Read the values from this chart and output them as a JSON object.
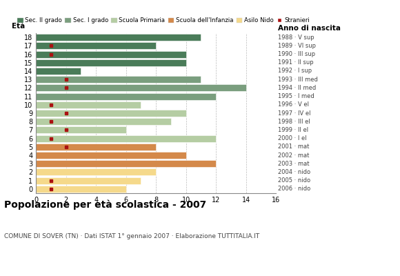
{
  "ages": [
    18,
    17,
    16,
    15,
    14,
    13,
    12,
    11,
    10,
    9,
    8,
    7,
    6,
    5,
    4,
    3,
    2,
    1,
    0
  ],
  "right_labels": [
    "1988 · V sup",
    "1989 · VI sup",
    "1990 · III sup",
    "1991 · II sup",
    "1992 · I sup",
    "1993 · III med",
    "1994 · II med",
    "1995 · I med",
    "1996 · V el",
    "1997 · IV el",
    "1998 · III el",
    "1999 · II el",
    "2000 · I el",
    "2001 · mat",
    "2002 · mat",
    "2003 · mat",
    "2004 · nido",
    "2005 · nido",
    "2006 · nido"
  ],
  "bar_values": [
    11,
    8,
    10,
    10,
    3,
    11,
    14,
    12,
    7,
    10,
    9,
    6,
    12,
    8,
    10,
    12,
    8,
    7,
    6
  ],
  "stranieri_values": [
    0,
    1,
    1,
    0,
    0,
    2,
    2,
    0,
    1,
    2,
    1,
    2,
    1,
    2,
    0,
    0,
    0,
    1,
    1
  ],
  "categories": [
    "Sec. II grado",
    "Sec. I grado",
    "Scuola Primaria",
    "Scuola dell'Infanzia",
    "Asilo Nido"
  ],
  "bar_colors": [
    "#4a7c59",
    "#7a9e7e",
    "#b5cda3",
    "#d4894a",
    "#f5d98b"
  ],
  "stranieri_color": "#aa1111",
  "age_category": [
    0,
    0,
    0,
    0,
    0,
    1,
    1,
    1,
    2,
    2,
    2,
    2,
    2,
    3,
    3,
    3,
    4,
    4,
    4
  ],
  "title": "Popolazione per età scolastica - 2007",
  "subtitle": "COMUNE DI SOVER (TN) · Dati ISTAT 1° gennaio 2007 · Elaborazione TUTTITALIA.IT",
  "xlabel_left": "Età",
  "xlabel_right": "Anno di nascita",
  "xlim": [
    0,
    16
  ],
  "xticks": [
    0,
    2,
    4,
    6,
    8,
    10,
    12,
    14,
    16
  ],
  "background_color": "#ffffff",
  "grid_color": "#aaaaaa"
}
